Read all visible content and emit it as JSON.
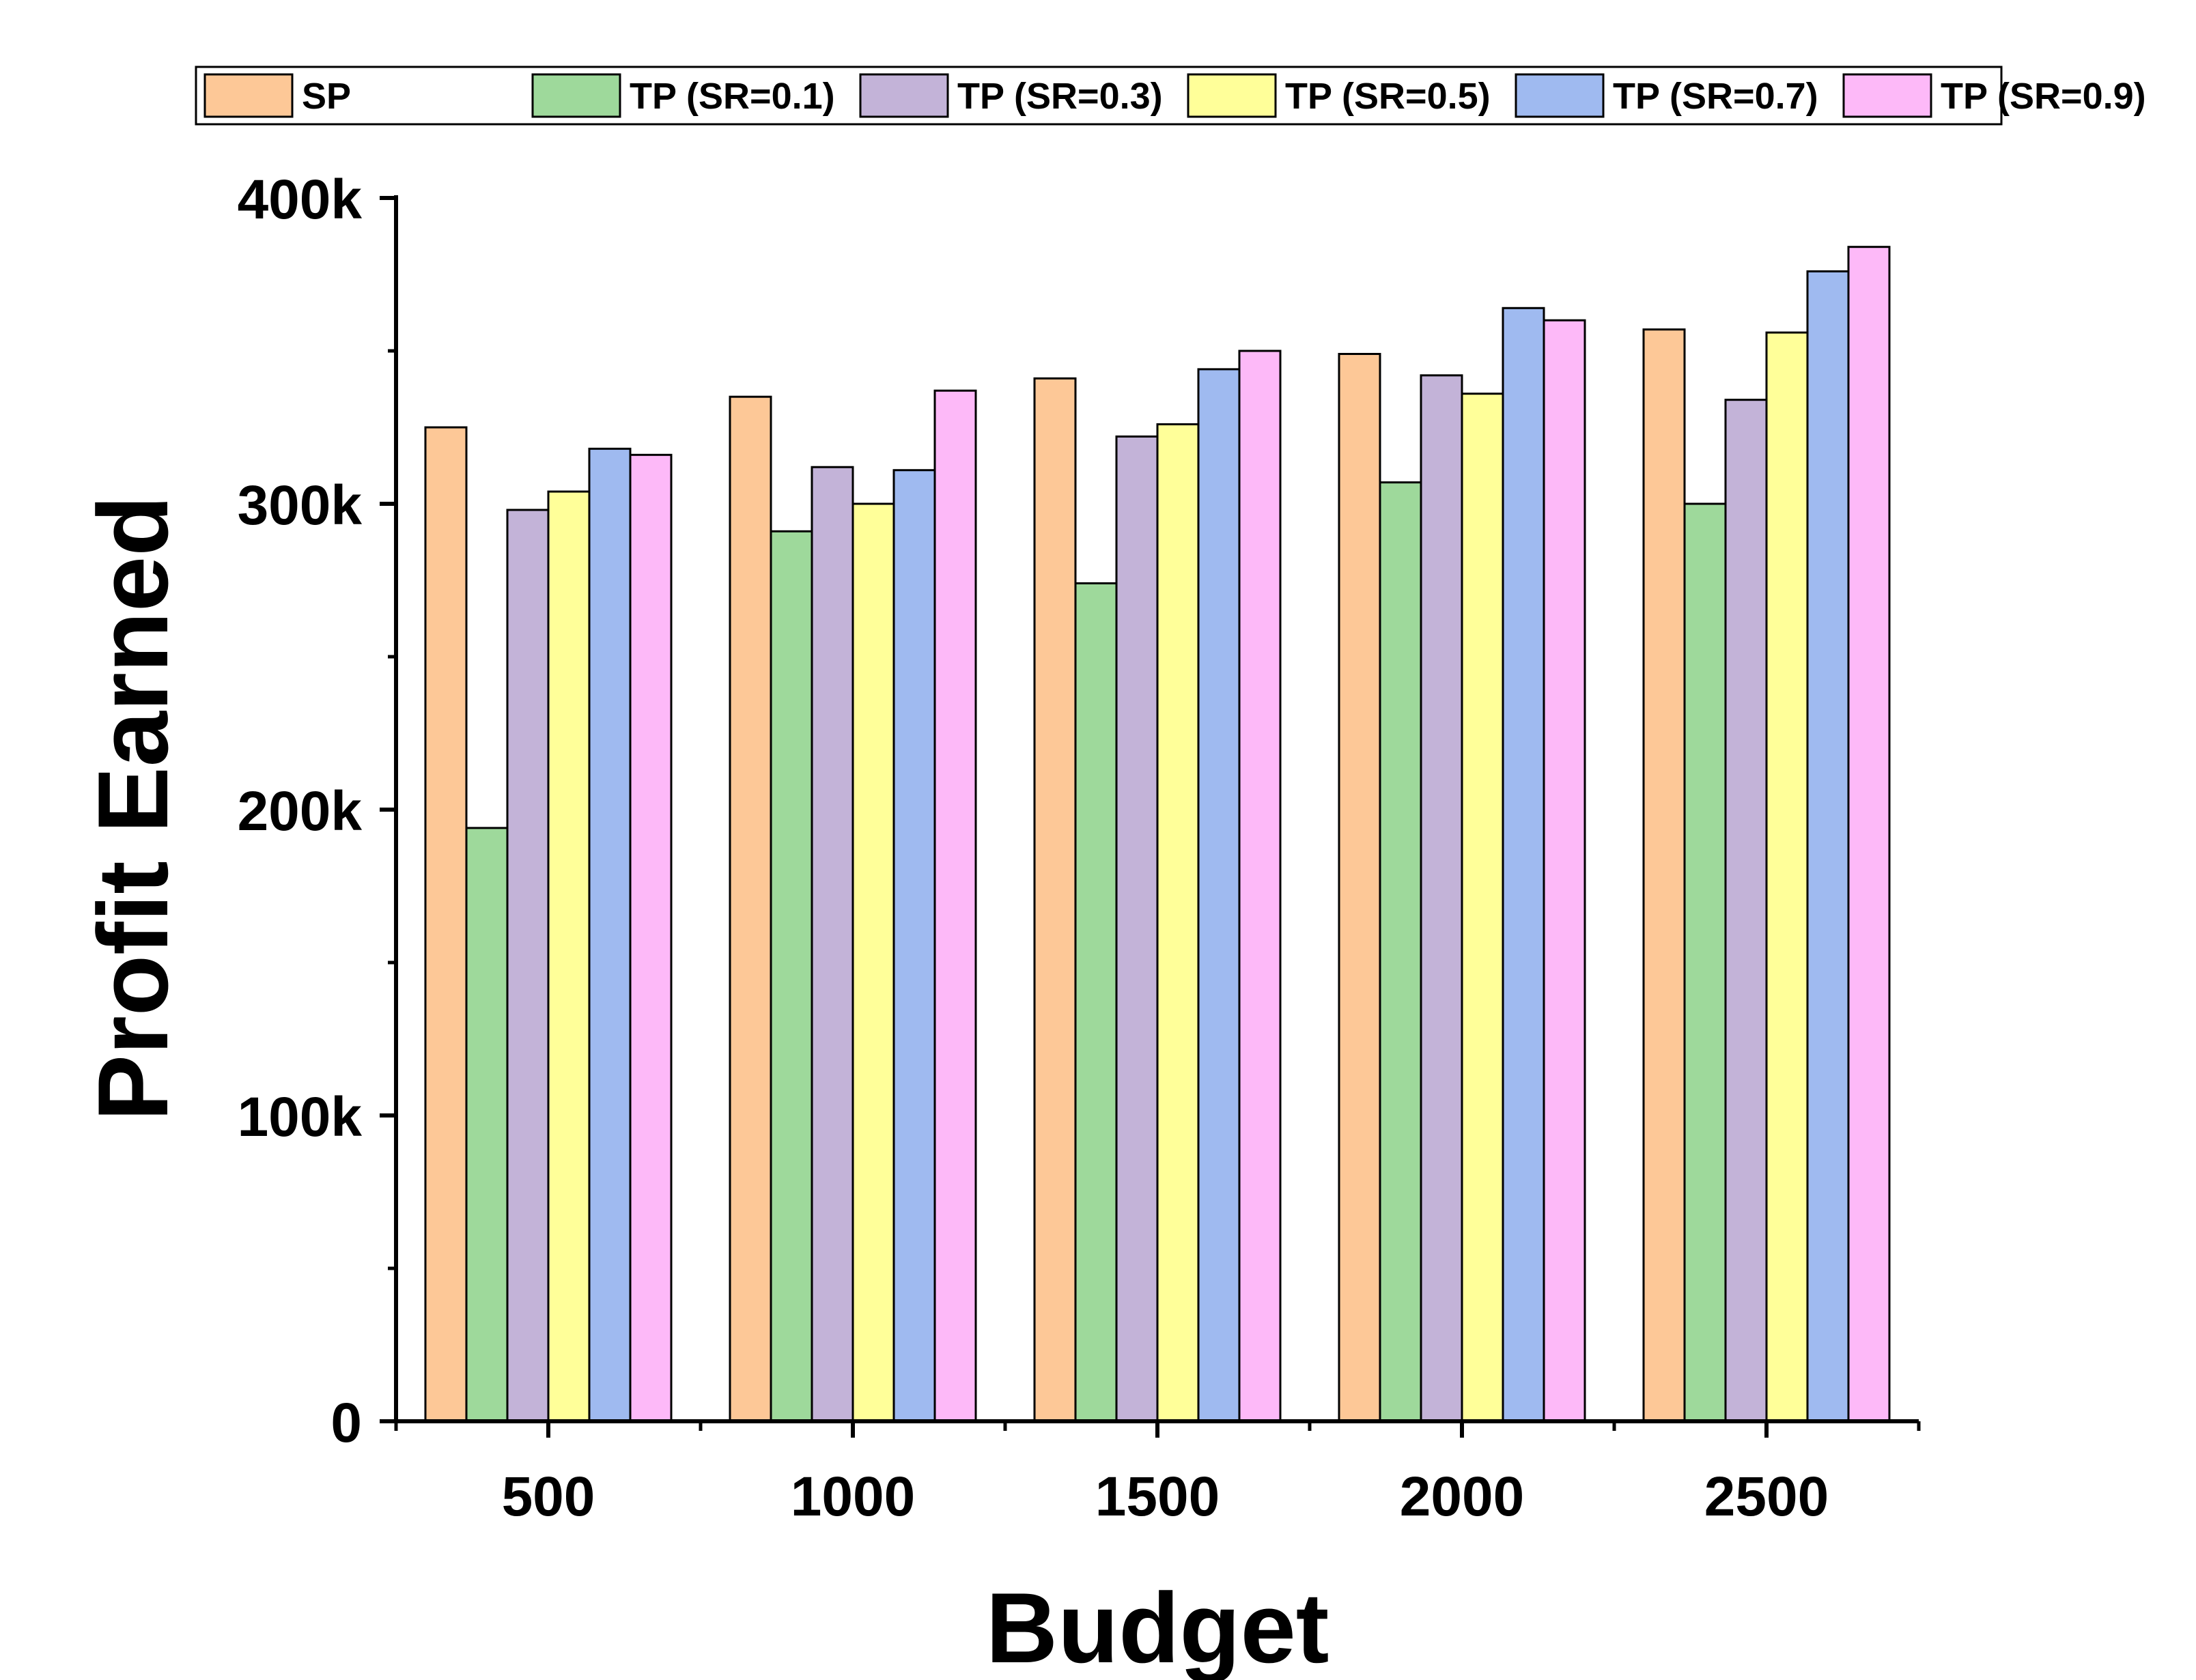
{
  "chart_data": {
    "type": "bar",
    "title": "",
    "xlabel": "Budget",
    "ylabel": "Profit Earned",
    "categories": [
      "500",
      "1000",
      "1500",
      "2000",
      "2500"
    ],
    "ylim": [
      0,
      400000
    ],
    "yticks": [
      {
        "value": 0,
        "label": "0"
      },
      {
        "value": 100000,
        "label": "100k"
      },
      {
        "value": 200000,
        "label": "200k"
      },
      {
        "value": 300000,
        "label": "300k"
      },
      {
        "value": 400000,
        "label": "400k"
      }
    ],
    "minor_yticks": [
      50000,
      150000,
      250000,
      350000
    ],
    "grid": false,
    "legend_position": "top",
    "series": [
      {
        "name": "SP",
        "color": "#FDC897",
        "values": [
          325000,
          335000,
          341000,
          349000,
          357000
        ]
      },
      {
        "name": "TP (SR=0.1)",
        "color": "#9ED99B",
        "values": [
          194000,
          291000,
          274000,
          307000,
          300000
        ]
      },
      {
        "name": "TP (SR=0.3)",
        "color": "#C3B3D8",
        "values": [
          298000,
          312000,
          322000,
          342000,
          334000
        ]
      },
      {
        "name": "TP (SR=0.5)",
        "color": "#FFFF99",
        "values": [
          304000,
          300000,
          326000,
          336000,
          356000
        ]
      },
      {
        "name": "TP (SR=0.7)",
        "color": "#9FBAF0",
        "values": [
          318000,
          311000,
          344000,
          364000,
          376000
        ]
      },
      {
        "name": "TP (SR=0.9)",
        "color": "#FDB9F8",
        "values": [
          316000,
          337000,
          350000,
          360000,
          384000
        ]
      }
    ]
  }
}
